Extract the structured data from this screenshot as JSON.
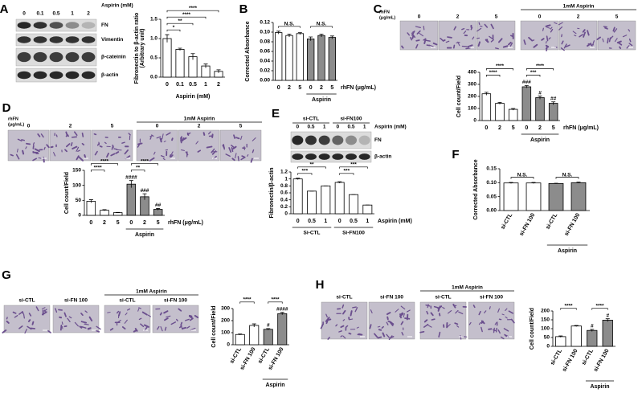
{
  "blot_a": {
    "title": "Aspirin (mM)",
    "lanes": [
      "0",
      "0.1",
      "0.5",
      "1",
      "2"
    ],
    "bands": [
      "FN",
      "Vimentin",
      "β-cateinin",
      "β-actin"
    ]
  },
  "blot_e": {
    "groups": [
      "si-CTL",
      "si-FN100"
    ],
    "title": "Aspirin (mM)",
    "lanes": [
      "0",
      "0.5",
      "1",
      "0",
      "0.5",
      "1"
    ],
    "bands": [
      "FN",
      "β-actin"
    ]
  },
  "images_c": {
    "row_label": [
      "rhFN",
      "(μg/mL)"
    ],
    "doses": [
      "0",
      "2",
      "5"
    ],
    "aspirin_label": "1mM Aspirin",
    "aspirin_doses": [
      "0",
      "2",
      "5"
    ]
  },
  "images_d": {
    "row_label": [
      "rhFN",
      "(μg/mL)"
    ],
    "doses": [
      "0",
      "2",
      "5"
    ],
    "aspirin_label": "1mM Aspirin",
    "aspirin_doses": [
      "0",
      "2",
      "5"
    ]
  },
  "images_g": {
    "columns": [
      "si-CTL",
      "si-FN 100"
    ],
    "aspirin_label": "1mM Aspirin",
    "aspirin_columns": [
      "si-CTL",
      "si-FN 100"
    ]
  },
  "images_h": {
    "columns": [
      "si-CTL",
      "si-FN 100"
    ],
    "aspirin_label": "1mM Aspirin",
    "aspirin_columns": [
      "si-CTL",
      "si-FN 100"
    ]
  },
  "chart_data": [
    {
      "type": "bar",
      "panel": "A",
      "ylabel": [
        "Fibronectin to β-actin ratio",
        "(Arbitrary unit)"
      ],
      "xlabel": "Aspirin (mM)",
      "categories": [
        "0",
        "0.1",
        "0.5",
        "1",
        "2"
      ],
      "values": [
        1.0,
        0.72,
        0.53,
        0.29,
        0.15
      ],
      "errors": [
        0.1,
        0.03,
        0.08,
        0.05,
        0.04
      ],
      "colors": [
        "#ffffff",
        "#ffffff",
        "#ffffff",
        "#ffffff",
        "#ffffff"
      ],
      "ylim": [
        0,
        1.5
      ],
      "yticks": [
        {
          "value": 0,
          "label": "0.0"
        },
        0.5,
        {
          "value": 1,
          "label": "1.0"
        },
        1.5
      ],
      "significance": [
        "*",
        "**",
        "****",
        "****"
      ]
    },
    {
      "type": "bar",
      "panel": "B",
      "ylabel": "Corrected Absorbance",
      "xlabel": "rhFN (μg/mL)",
      "group_label": "Aspirin",
      "categories": [
        "0",
        "2",
        "5",
        "0",
        "2",
        "5"
      ],
      "values": [
        0.099,
        0.093,
        0.097,
        0.086,
        0.093,
        0.089
      ],
      "errors": [
        0.003,
        0.003,
        0.002,
        0.004,
        0.003,
        0.003
      ],
      "colors": [
        "#ffffff",
        "#ffffff",
        "#ffffff",
        "#8c8c8c",
        "#8c8c8c",
        "#8c8c8c"
      ],
      "ylim": [
        0,
        0.12
      ],
      "yticks": [
        {
          "value": 0,
          "label": "0.00"
        },
        {
          "value": 0.02,
          "label": "0.02"
        },
        {
          "value": 0.04,
          "label": "0.04"
        },
        {
          "value": 0.06,
          "label": "0.06"
        },
        {
          "value": 0.08,
          "label": "0.08"
        },
        {
          "value": 0.1,
          "label": "0.10"
        },
        {
          "value": 0.12,
          "label": "0.12"
        }
      ],
      "significance": [
        "N.S.",
        "N.S."
      ]
    },
    {
      "type": "bar",
      "panel": "C",
      "ylabel": "Cell count/Field",
      "xlabel": "rhFN (μg/mL)",
      "group_label": "Aspirin",
      "categories": [
        "0",
        "2",
        "5",
        "0",
        "2",
        "5"
      ],
      "values": [
        222,
        143,
        93,
        280,
        190,
        143
      ],
      "errors": [
        12,
        8,
        7,
        10,
        13,
        12
      ],
      "colors": [
        "#ffffff",
        "#ffffff",
        "#ffffff",
        "#8c8c8c",
        "#8c8c8c",
        "#8c8c8c"
      ],
      "markers": [
        null,
        null,
        null,
        "###",
        "#",
        "##"
      ],
      "ylim": [
        0,
        400
      ],
      "yticks": [
        0,
        100,
        200,
        300,
        400
      ],
      "significance": [
        "****",
        "****",
        "***",
        "****"
      ]
    },
    {
      "type": "bar",
      "panel": "D",
      "ylabel": "Cell count/Field",
      "xlabel": "rhFN (μg/mL)",
      "group_label": "Aspirin",
      "categories": [
        "0",
        "2",
        "5",
        "0",
        "2",
        "5"
      ],
      "values": [
        47,
        17,
        9,
        104,
        62,
        20
      ],
      "errors": [
        5,
        2,
        1,
        12,
        10,
        3
      ],
      "colors": [
        "#ffffff",
        "#ffffff",
        "#ffffff",
        "#8c8c8c",
        "#8c8c8c",
        "#8c8c8c"
      ],
      "markers": [
        null,
        null,
        null,
        "####",
        "###",
        "##"
      ],
      "ylim": [
        0,
        150
      ],
      "yticks": [
        0,
        50,
        100,
        150
      ],
      "significance": [
        "****",
        "****",
        "**",
        "****"
      ]
    },
    {
      "type": "bar",
      "panel": "E",
      "ylabel": "Fibronectin/β-actin",
      "xlabel": "Aspirin (mM)",
      "group_labels": [
        "Si-CTL",
        "Si-FN100"
      ],
      "categories": [
        "0",
        "0.5",
        "1",
        "0",
        "0.5",
        "1"
      ],
      "values": [
        1.0,
        0.65,
        0.8,
        0.9,
        0.55,
        0.25
      ],
      "errors": [
        0.02,
        0,
        0,
        0.02,
        0,
        0
      ],
      "colors": [
        "#ffffff",
        "#ffffff",
        "#ffffff",
        "#ffffff",
        "#ffffff",
        "#ffffff"
      ],
      "ylim": [
        0,
        1.2
      ],
      "yticks": [
        0,
        0.2,
        0.4,
        0.6,
        0.8,
        1,
        1.2
      ],
      "significance": [
        "**",
        "***",
        "***",
        "***"
      ]
    },
    {
      "type": "bar",
      "panel": "F",
      "ylabel": "Corrected Absorbance",
      "group_label": "Aspirin",
      "rotate_categories": true,
      "categories": [
        "si-CTL",
        "si-FN 100",
        "si-CTL",
        "si-FN 100"
      ],
      "values": [
        0.099,
        0.099,
        0.097,
        0.1
      ],
      "errors": [
        0.002,
        0.002,
        0.001,
        0.002
      ],
      "colors": [
        "#ffffff",
        "#ffffff",
        "#8c8c8c",
        "#8c8c8c"
      ],
      "ylim": [
        0,
        0.15
      ],
      "yticks": [
        {
          "value": 0,
          "label": "0.00"
        },
        {
          "value": 0.05,
          "label": "0.05"
        },
        {
          "value": 0.1,
          "label": "0.10"
        },
        {
          "value": 0.15,
          "label": "0.15"
        }
      ],
      "significance": [
        "N.S.",
        "N.S."
      ]
    },
    {
      "type": "bar",
      "panel": "G",
      "ylabel": "Cell count/Field",
      "group_label": "Aspirin",
      "rotate_categories": true,
      "categories": [
        "si-CTL",
        "si-FN 100",
        "si-CTL",
        "si-FN 100"
      ],
      "values": [
        85,
        160,
        128,
        258
      ],
      "errors": [
        4,
        13,
        6,
        10
      ],
      "colors": [
        "#ffffff",
        "#ffffff",
        "#8c8c8c",
        "#8c8c8c"
      ],
      "markers": [
        null,
        null,
        "#",
        "####"
      ],
      "ylim": [
        0,
        300
      ],
      "yticks": [
        0,
        100,
        200,
        300
      ],
      "significance": [
        "****",
        "****"
      ]
    },
    {
      "type": "bar",
      "panel": "H",
      "ylabel": "Cell count/Field",
      "group_label": "Aspirin",
      "rotate_categories": true,
      "categories": [
        "si-CTL",
        "si-FN 100",
        "si-CTL",
        "si-FN 100"
      ],
      "values": [
        55,
        115,
        90,
        148
      ],
      "errors": [
        4,
        3,
        6,
        8
      ],
      "colors": [
        "#ffffff",
        "#ffffff",
        "#8c8c8c",
        "#8c8c8c"
      ],
      "markers": [
        null,
        null,
        "#",
        "#"
      ],
      "ylim": [
        0,
        200
      ],
      "yticks": [
        0,
        50,
        100,
        150,
        200
      ],
      "significance": [
        "****",
        "****"
      ]
    }
  ]
}
